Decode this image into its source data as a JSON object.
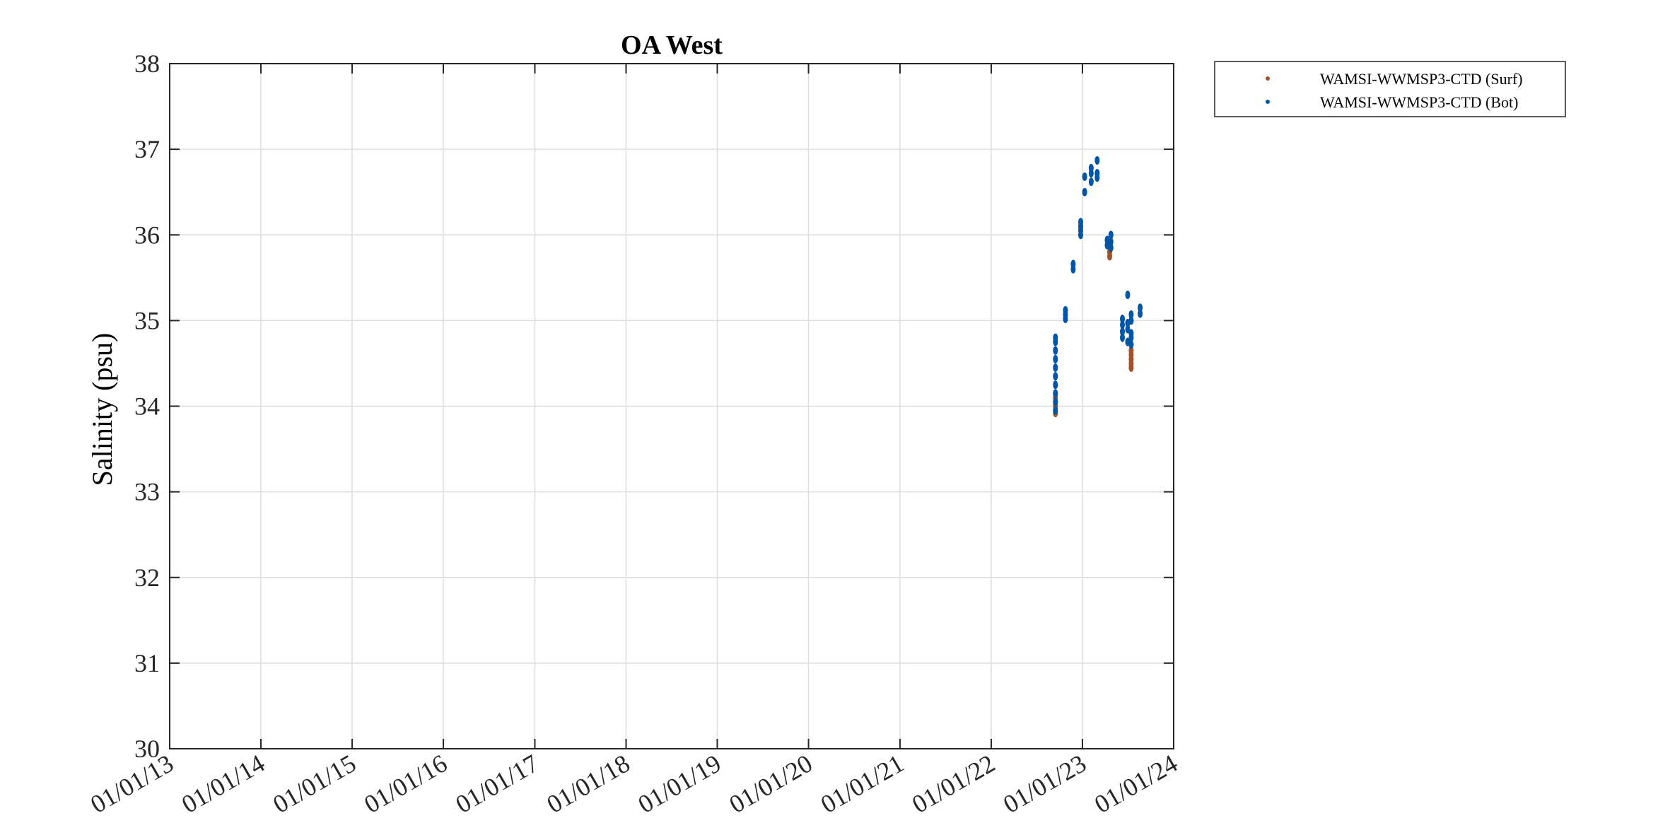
{
  "chart_data": {
    "type": "scatter",
    "title": "OA West",
    "xlabel": "",
    "ylabel": "Salinity (psu)",
    "ylim": [
      30,
      38
    ],
    "yticks": [
      "30",
      "31",
      "32",
      "33",
      "34",
      "35",
      "36",
      "37",
      "38"
    ],
    "xlim": [
      "2013-01-01",
      "2024-01-01"
    ],
    "xticks": [
      {
        "date": "2013-01-01",
        "label": "01/01/13"
      },
      {
        "date": "2014-01-01",
        "label": "01/01/14"
      },
      {
        "date": "2015-01-01",
        "label": "01/01/15"
      },
      {
        "date": "2016-01-01",
        "label": "01/01/16"
      },
      {
        "date": "2017-01-01",
        "label": "01/01/17"
      },
      {
        "date": "2018-01-01",
        "label": "01/01/18"
      },
      {
        "date": "2019-01-01",
        "label": "01/01/19"
      },
      {
        "date": "2020-01-01",
        "label": "01/01/20"
      },
      {
        "date": "2021-01-01",
        "label": "01/01/21"
      },
      {
        "date": "2022-01-01",
        "label": "01/01/22"
      },
      {
        "date": "2023-01-01",
        "label": "01/01/23"
      },
      {
        "date": "2024-01-01",
        "label": "01/01/24"
      }
    ],
    "grid": true,
    "legend_position": "outside-top-right",
    "series": [
      {
        "name": "WAMSI-WWMSP3-CTD (Surf)",
        "color": "#A0522D",
        "points": [
          {
            "x": "2022-09-15",
            "y": 33.92
          },
          {
            "x": "2022-09-15",
            "y": 34.0
          },
          {
            "x": "2022-09-15",
            "y": 34.1
          },
          {
            "x": "2023-04-20",
            "y": 35.75
          },
          {
            "x": "2023-04-20",
            "y": 35.8
          },
          {
            "x": "2023-07-15",
            "y": 34.45
          },
          {
            "x": "2023-07-15",
            "y": 34.5
          },
          {
            "x": "2023-07-15",
            "y": 34.55
          },
          {
            "x": "2023-07-15",
            "y": 34.6
          },
          {
            "x": "2023-07-15",
            "y": 34.65
          }
        ]
      },
      {
        "name": "WAMSI-WWMSP3-CTD (Bot)",
        "color": "#0055A4",
        "points": [
          {
            "x": "2022-09-15",
            "y": 33.95
          },
          {
            "x": "2022-09-15",
            "y": 34.05
          },
          {
            "x": "2022-09-15",
            "y": 34.15
          },
          {
            "x": "2022-09-15",
            "y": 34.25
          },
          {
            "x": "2022-09-15",
            "y": 34.35
          },
          {
            "x": "2022-09-15",
            "y": 34.45
          },
          {
            "x": "2022-09-15",
            "y": 34.55
          },
          {
            "x": "2022-09-15",
            "y": 34.65
          },
          {
            "x": "2022-09-15",
            "y": 34.75
          },
          {
            "x": "2022-09-15",
            "y": 34.8
          },
          {
            "x": "2022-10-25",
            "y": 35.02
          },
          {
            "x": "2022-10-25",
            "y": 35.07
          },
          {
            "x": "2022-10-25",
            "y": 35.12
          },
          {
            "x": "2022-11-25",
            "y": 35.6
          },
          {
            "x": "2022-11-25",
            "y": 35.66
          },
          {
            "x": "2022-12-25",
            "y": 36.0
          },
          {
            "x": "2022-12-25",
            "y": 36.05
          },
          {
            "x": "2022-12-25",
            "y": 36.1
          },
          {
            "x": "2022-12-25",
            "y": 36.15
          },
          {
            "x": "2023-01-10",
            "y": 36.5
          },
          {
            "x": "2023-01-10",
            "y": 36.68
          },
          {
            "x": "2023-02-05",
            "y": 36.62
          },
          {
            "x": "2023-02-05",
            "y": 36.72
          },
          {
            "x": "2023-02-05",
            "y": 36.78
          },
          {
            "x": "2023-03-01",
            "y": 36.67
          },
          {
            "x": "2023-03-01",
            "y": 36.72
          },
          {
            "x": "2023-03-01",
            "y": 36.87
          },
          {
            "x": "2023-04-10",
            "y": 35.88
          },
          {
            "x": "2023-04-10",
            "y": 35.94
          },
          {
            "x": "2023-04-25",
            "y": 35.85
          },
          {
            "x": "2023-04-25",
            "y": 35.92
          },
          {
            "x": "2023-04-25",
            "y": 36.0
          },
          {
            "x": "2023-06-10",
            "y": 34.8
          },
          {
            "x": "2023-06-10",
            "y": 34.87
          },
          {
            "x": "2023-06-10",
            "y": 34.95
          },
          {
            "x": "2023-06-10",
            "y": 35.02
          },
          {
            "x": "2023-07-01",
            "y": 34.75
          },
          {
            "x": "2023-07-01",
            "y": 34.9
          },
          {
            "x": "2023-07-01",
            "y": 34.97
          },
          {
            "x": "2023-07-01",
            "y": 35.3
          },
          {
            "x": "2023-07-15",
            "y": 34.72
          },
          {
            "x": "2023-07-15",
            "y": 34.8
          },
          {
            "x": "2023-07-15",
            "y": 34.85
          },
          {
            "x": "2023-07-15",
            "y": 35.0
          },
          {
            "x": "2023-07-15",
            "y": 35.07
          },
          {
            "x": "2023-08-20",
            "y": 35.08
          },
          {
            "x": "2023-08-20",
            "y": 35.15
          }
        ]
      }
    ]
  }
}
